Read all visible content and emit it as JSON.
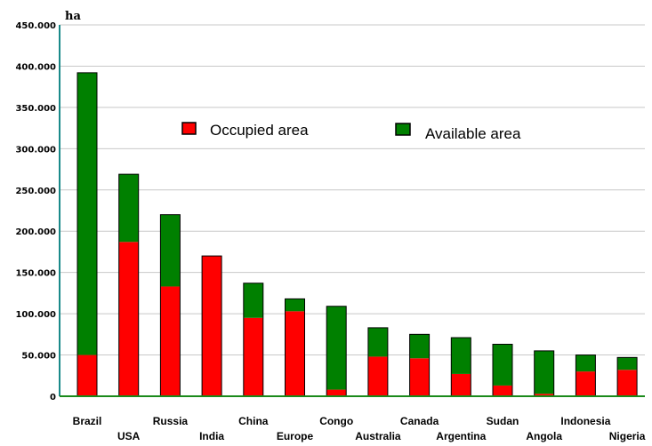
{
  "chart_data": {
    "type": "bar",
    "stacked": true,
    "ylabel": "ha",
    "ylim": [
      0,
      450000
    ],
    "yticks": [
      "0",
      "50.000",
      "100.000",
      "150.000",
      "200.000",
      "250.000",
      "300.000",
      "350.000",
      "400.000",
      "450.000"
    ],
    "grid": true,
    "legend_position": "top-center",
    "categories": [
      "Brazil",
      "USA",
      "Russia",
      "India",
      "China",
      "Europe",
      "Congo",
      "Australia",
      "Canada",
      "Argentina",
      "Sudan",
      "Angola",
      "Indonesia",
      "Nigeria"
    ],
    "series": [
      {
        "name": "Occupied area",
        "color": "#ff0000",
        "values": [
          50000,
          187000,
          133000,
          170000,
          95000,
          103000,
          8000,
          48000,
          46000,
          27000,
          13000,
          3000,
          30000,
          32000
        ]
      },
      {
        "name": "Available area",
        "color": "#008000",
        "values": [
          342000,
          82000,
          87000,
          0,
          42000,
          15000,
          101000,
          35000,
          29000,
          44000,
          50000,
          52000,
          20000,
          15000
        ]
      }
    ]
  }
}
